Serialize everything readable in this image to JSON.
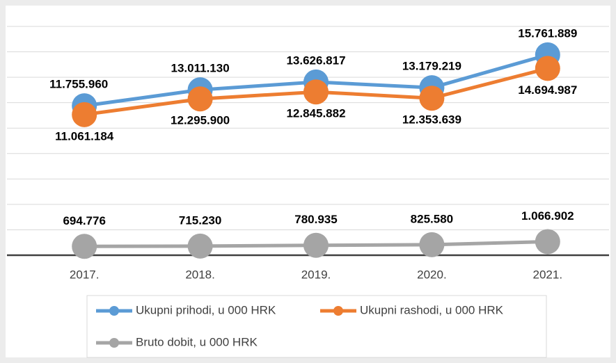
{
  "chart_data": {
    "type": "line",
    "categories": [
      "2017.",
      "2018.",
      "2019.",
      "2020.",
      "2021."
    ],
    "series": [
      {
        "name": "Ukupni prihodi, u 000 HRK",
        "color": "#5b9bd5",
        "values": [
          11755960,
          13011130,
          13626817,
          13179219,
          15761889
        ],
        "value_labels": [
          "11.755.960",
          "13.011.130",
          "13.626.817",
          "13.179.219",
          "15.761.889"
        ]
      },
      {
        "name": "Ukupni rashodi, u 000 HRK",
        "color": "#ed7d31",
        "values": [
          11061184,
          12295900,
          12845882,
          12353639,
          14694987
        ],
        "value_labels": [
          "11.061.184",
          "12.295.900",
          "12.845.882",
          "12.353.639",
          "14.694.987"
        ]
      },
      {
        "name": "Bruto dobit, u 000 HRK",
        "color": "#a5a5a5",
        "values": [
          694776,
          715230,
          780935,
          825580,
          1066902
        ],
        "value_labels": [
          "694.776",
          "715.230",
          "780.935",
          "825.580",
          "1.066.902"
        ]
      }
    ],
    "ylim": [
      0,
      18000000
    ],
    "yticks": [
      0,
      2000000,
      4000000,
      6000000,
      8000000,
      10000000,
      12000000,
      14000000,
      16000000,
      18000000
    ],
    "grid": true
  }
}
